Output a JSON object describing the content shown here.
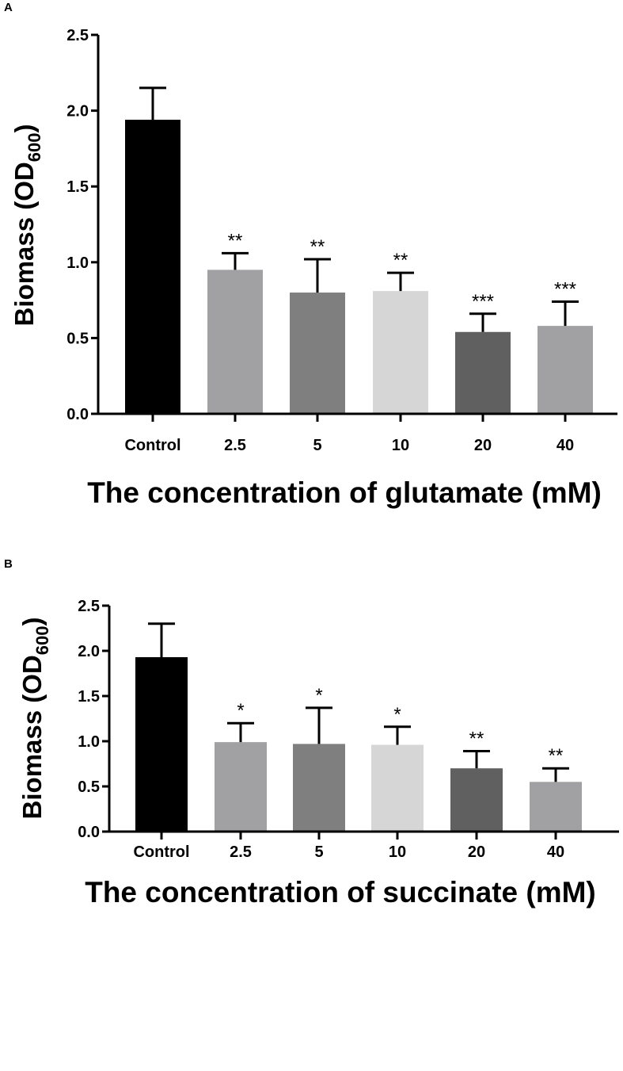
{
  "chart_data": [
    {
      "panel": "A",
      "type": "bar",
      "categories": [
        "Control",
        "2.5",
        "5",
        "10",
        "20",
        "40"
      ],
      "values": [
        1.94,
        0.95,
        0.8,
        0.81,
        0.54,
        0.58
      ],
      "errors": [
        0.21,
        0.11,
        0.22,
        0.12,
        0.12,
        0.16
      ],
      "significance": [
        "",
        "**",
        "**",
        "**",
        "***",
        "***"
      ],
      "bar_colors": [
        "#000000",
        "#a1a1a3",
        "#7f7f7f",
        "#d6d6d6",
        "#606060",
        "#a1a1a3"
      ],
      "xlabel": "The concentration of glutamate (mM)",
      "ylabel_main": "Biomass (OD",
      "ylabel_sub": "600",
      "ylabel_end": ")",
      "ylim": [
        0,
        2.5
      ],
      "yticks": [
        "0.0",
        "0.5",
        "1.0",
        "1.5",
        "2.0",
        "2.5"
      ],
      "grid": false,
      "legend": "none"
    },
    {
      "panel": "B",
      "type": "bar",
      "categories": [
        "Control",
        "2.5",
        "5",
        "10",
        "20",
        "40"
      ],
      "values": [
        1.93,
        0.99,
        0.97,
        0.96,
        0.7,
        0.55
      ],
      "errors": [
        0.37,
        0.21,
        0.4,
        0.2,
        0.19,
        0.15
      ],
      "significance": [
        "",
        "*",
        "*",
        "*",
        "**",
        "**"
      ],
      "bar_colors": [
        "#000000",
        "#a1a1a3",
        "#7f7f7f",
        "#d6d6d6",
        "#606060",
        "#a1a1a3"
      ],
      "xlabel": "The concentration of succinate (mM)",
      "ylabel_main": "Biomass (OD",
      "ylabel_sub": "600",
      "ylabel_end": ")",
      "ylim": [
        0,
        2.5
      ],
      "yticks": [
        "0.0",
        "0.5",
        "1.0",
        "1.5",
        "2.0",
        "2.5"
      ],
      "grid": false,
      "legend": "none"
    }
  ]
}
